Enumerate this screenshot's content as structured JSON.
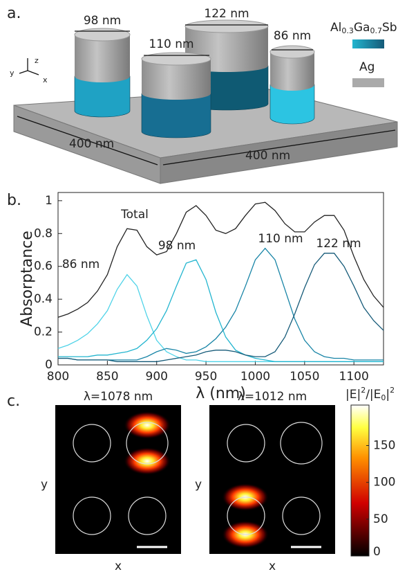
{
  "panel_a": {
    "label": "a.",
    "diameters": [
      "98 nm",
      "110 nm",
      "122 nm",
      "86 nm"
    ],
    "material": {
      "base": "Al",
      "sub1": "0.3",
      "mid": "Ga",
      "sub2": "0.7",
      "end": "Sb"
    },
    "metal": "Ag",
    "width_left": "400 nm",
    "width_right": "400 nm",
    "axis_x": "x",
    "axis_y": "y",
    "axis_z": "z"
  },
  "chart_data": {
    "type": "line",
    "panel_label": "b.",
    "x_label": "λ (nm)",
    "y_label": "Absorptance",
    "x": [
      800,
      810,
      820,
      830,
      840,
      850,
      860,
      870,
      880,
      890,
      900,
      910,
      920,
      930,
      940,
      950,
      960,
      970,
      980,
      990,
      1000,
      1010,
      1020,
      1030,
      1040,
      1050,
      1060,
      1070,
      1080,
      1090,
      1100,
      1110,
      1120,
      1130
    ],
    "series": [
      {
        "name": "Total",
        "color": "#222222",
        "values": [
          0.29,
          0.31,
          0.34,
          0.38,
          0.45,
          0.55,
          0.72,
          0.83,
          0.82,
          0.72,
          0.67,
          0.69,
          0.8,
          0.93,
          0.97,
          0.91,
          0.82,
          0.8,
          0.83,
          0.91,
          0.98,
          0.99,
          0.94,
          0.86,
          0.81,
          0.81,
          0.87,
          0.91,
          0.91,
          0.82,
          0.66,
          0.52,
          0.42,
          0.35
        ]
      },
      {
        "name": "86 nm",
        "color": "#4fd3e8",
        "values": [
          0.1,
          0.12,
          0.15,
          0.19,
          0.25,
          0.33,
          0.46,
          0.55,
          0.48,
          0.3,
          0.15,
          0.08,
          0.05,
          0.03,
          0.03,
          0.02,
          0.02,
          0.02,
          0.02,
          0.02,
          0.02,
          0.02,
          0.02,
          0.02,
          0.02,
          0.02,
          0.02,
          0.02,
          0.02,
          0.02,
          0.02,
          0.02,
          0.02,
          0.02
        ]
      },
      {
        "name": "98 nm",
        "color": "#22b5cf",
        "values": [
          0.05,
          0.05,
          0.05,
          0.05,
          0.06,
          0.06,
          0.07,
          0.08,
          0.1,
          0.15,
          0.22,
          0.33,
          0.48,
          0.62,
          0.64,
          0.52,
          0.32,
          0.17,
          0.09,
          0.06,
          0.04,
          0.03,
          0.02,
          0.02,
          0.02,
          0.02,
          0.02,
          0.02,
          0.02,
          0.02,
          0.02,
          0.02,
          0.02,
          0.02
        ]
      },
      {
        "name": "110 nm",
        "color": "#1784a6",
        "values": [
          0.04,
          0.04,
          0.03,
          0.03,
          0.03,
          0.03,
          0.03,
          0.03,
          0.03,
          0.05,
          0.08,
          0.1,
          0.09,
          0.07,
          0.08,
          0.11,
          0.16,
          0.23,
          0.33,
          0.48,
          0.64,
          0.71,
          0.64,
          0.46,
          0.28,
          0.15,
          0.08,
          0.05,
          0.04,
          0.04,
          0.03,
          0.03,
          0.03,
          0.03
        ]
      },
      {
        "name": "122 nm",
        "color": "#155a78",
        "values": [
          0.04,
          0.04,
          0.03,
          0.03,
          0.03,
          0.03,
          0.02,
          0.02,
          0.02,
          0.02,
          0.02,
          0.03,
          0.04,
          0.05,
          0.06,
          0.08,
          0.09,
          0.09,
          0.08,
          0.06,
          0.05,
          0.05,
          0.08,
          0.17,
          0.31,
          0.47,
          0.61,
          0.68,
          0.68,
          0.6,
          0.48,
          0.35,
          0.27,
          0.21
        ]
      }
    ],
    "xlim": [
      800,
      1130
    ],
    "ylim": [
      0,
      1.05
    ],
    "xticks": [
      800,
      850,
      900,
      950,
      1000,
      1050,
      1100
    ],
    "yticks": [
      0,
      0.2,
      0.4,
      0.6,
      0.8,
      1
    ]
  },
  "panel_c": {
    "label": "c.",
    "titles": [
      "λ=1078 nm",
      "λ=1012 nm"
    ],
    "axis_y": "y",
    "axis_x": "x",
    "colorbar_label": {
      "p1": "|E|",
      "s1": "2",
      "p2": "/|E",
      "s2": "0",
      "p3": "|",
      "s3": "2"
    },
    "colorbar_lim": [
      0,
      205
    ],
    "colorbar_ticks": [
      0,
      50,
      100,
      150
    ]
  }
}
